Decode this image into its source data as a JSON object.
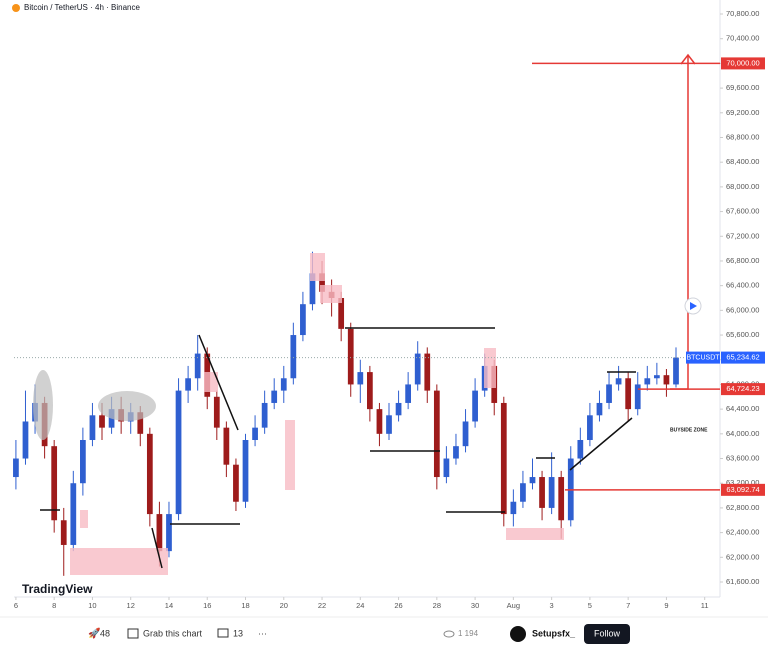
{
  "chart_data": {
    "type": "candlestick",
    "title": "Bitcoin / TetherUS · 4h · Binance",
    "x": [
      0,
      0.5,
      1,
      1.5,
      2,
      2.5,
      3,
      3.5,
      4,
      4.5,
      5,
      5.5,
      6,
      6.5,
      7,
      7.5,
      8,
      8.5,
      9,
      9.5,
      10,
      10.5,
      11,
      11.5,
      12,
      12.5,
      13,
      13.5,
      14,
      14.5,
      15,
      15.5,
      16,
      16.5,
      17,
      17.5,
      18,
      18.5,
      19,
      19.5,
      20,
      20.5,
      21,
      21.5,
      22,
      22.5,
      23,
      23.5,
      24,
      24.5,
      25,
      25.5,
      26,
      26.5,
      27,
      27.5,
      28,
      28.5,
      29,
      29.5,
      30,
      30.5,
      31,
      31.5,
      32,
      32.5,
      33,
      33.5,
      34,
      34.5
    ],
    "open": [
      63300,
      63600,
      64200,
      64500,
      63800,
      62600,
      62200,
      63200,
      63900,
      64300,
      64100,
      64400,
      64200,
      64350,
      64000,
      62700,
      62100,
      62700,
      64700,
      64900,
      65300,
      64600,
      64100,
      63500,
      62900,
      63900,
      64100,
      64500,
      64700,
      64900,
      65600,
      66100,
      66600,
      66300,
      66200,
      65700,
      64800,
      65000,
      64400,
      64000,
      64300,
      64500,
      64800,
      65300,
      64700,
      63300,
      63600,
      63800,
      64200,
      64700,
      65100,
      64500,
      62700,
      62900,
      63200,
      63300,
      62800,
      63300,
      62600,
      63600,
      63900,
      64300,
      64500,
      64800,
      64900,
      64400,
      64800,
      64900,
      64950,
      64800
    ],
    "high": [
      63900,
      64700,
      64800,
      64600,
      63900,
      62800,
      63400,
      64100,
      64500,
      64500,
      64600,
      64600,
      64500,
      64450,
      64100,
      62900,
      62900,
      64900,
      65100,
      65600,
      65400,
      64700,
      64200,
      63600,
      64000,
      64300,
      64700,
      64900,
      65100,
      65800,
      66300,
      66950,
      66800,
      66500,
      66300,
      65800,
      65200,
      65100,
      64500,
      64500,
      64700,
      65000,
      65500,
      65400,
      64800,
      63800,
      64000,
      64400,
      64900,
      65300,
      65200,
      64600,
      63100,
      63400,
      63600,
      63400,
      63700,
      63400,
      63800,
      64100,
      64500,
      64700,
      65000,
      65100,
      65000,
      65000,
      65100,
      65150,
      65050,
      65400
    ],
    "low": [
      63100,
      63500,
      64000,
      63600,
      62400,
      61700,
      62100,
      63000,
      63800,
      63900,
      64000,
      64000,
      64000,
      63800,
      62500,
      61850,
      62000,
      62600,
      64500,
      64700,
      64400,
      63900,
      63300,
      62750,
      62800,
      63800,
      64000,
      64400,
      64500,
      64800,
      65500,
      66000,
      66100,
      65900,
      65500,
      64600,
      64500,
      64200,
      63800,
      63900,
      64200,
      64400,
      64700,
      64500,
      63100,
      63200,
      63500,
      63700,
      64100,
      64600,
      64300,
      62500,
      62500,
      62800,
      63100,
      62600,
      62700,
      62300,
      62500,
      63500,
      63800,
      64200,
      64400,
      64700,
      64200,
      64300,
      64700,
      64800,
      64600,
      64750
    ],
    "close": [
      63600,
      64200,
      64500,
      63800,
      62600,
      62200,
      63200,
      63900,
      64300,
      64100,
      64400,
      64200,
      64350,
      64000,
      62700,
      62100,
      62700,
      64700,
      64900,
      65300,
      64600,
      64100,
      63500,
      62900,
      63900,
      64100,
      64500,
      64700,
      64900,
      65600,
      66100,
      66600,
      66300,
      66200,
      65700,
      64800,
      65000,
      64400,
      64000,
      64300,
      64500,
      64800,
      65300,
      64700,
      63300,
      63600,
      63800,
      64200,
      64700,
      65100,
      64500,
      62700,
      62900,
      63200,
      63300,
      62800,
      63300,
      62600,
      63600,
      63900,
      64300,
      64500,
      64800,
      64900,
      64400,
      64800,
      64900,
      64950,
      64800,
      65234.62
    ],
    "up_color": "#2f5fd0",
    "down_color": "#9e1b1b",
    "xlim": [
      -0.1,
      36.8
    ],
    "xticks": [
      {
        "value": 0,
        "label": "6"
      },
      {
        "value": 2,
        "label": "8"
      },
      {
        "value": 4,
        "label": "10"
      },
      {
        "value": 6,
        "label": "12"
      },
      {
        "value": 8,
        "label": "14"
      },
      {
        "value": 10,
        "label": "16"
      },
      {
        "value": 12,
        "label": "18"
      },
      {
        "value": 14,
        "label": "20"
      },
      {
        "value": 16,
        "label": "22"
      },
      {
        "value": 18,
        "label": "24"
      },
      {
        "value": 20,
        "label": "26"
      },
      {
        "value": 22,
        "label": "28"
      },
      {
        "value": 24,
        "label": "30"
      },
      {
        "value": 26,
        "label": "Aug"
      },
      {
        "value": 28,
        "label": "3"
      },
      {
        "value": 30,
        "label": "5"
      },
      {
        "value": 32,
        "label": "7"
      },
      {
        "value": 34,
        "label": "9"
      },
      {
        "value": 36,
        "label": "11"
      }
    ],
    "ylim": [
      61357,
      71027
    ],
    "yticks": [
      {
        "value": 61600,
        "label": "61,600.00"
      },
      {
        "value": 62000,
        "label": "62,000.00"
      },
      {
        "value": 62400,
        "label": "62,400.00"
      },
      {
        "value": 62800,
        "label": "62,800.00"
      },
      {
        "value": 63200,
        "label": "63,200.00"
      },
      {
        "value": 63600,
        "label": "63,600.00"
      },
      {
        "value": 64000,
        "label": "64,000.00"
      },
      {
        "value": 64400,
        "label": "64,400.00"
      },
      {
        "value": 64800,
        "label": "64,800.00"
      },
      {
        "value": 65200,
        "label": "65,200.00"
      },
      {
        "value": 65600,
        "label": "65,600.00"
      },
      {
        "value": 66000,
        "label": "66,000.00"
      },
      {
        "value": 66400,
        "label": "66,400.00"
      },
      {
        "value": 66800,
        "label": "66,800.00"
      },
      {
        "value": 67200,
        "label": "67,200.00"
      },
      {
        "value": 67600,
        "label": "67,600.00"
      },
      {
        "value": 68000,
        "label": "68,000.00"
      },
      {
        "value": 68400,
        "label": "68,400.00"
      },
      {
        "value": 68800,
        "label": "68,800.00"
      },
      {
        "value": 69200,
        "label": "69,200.00"
      },
      {
        "value": 69600,
        "label": "69,600.00"
      },
      {
        "value": 70000,
        "label": "70,000.00"
      },
      {
        "value": 70400,
        "label": "70,400.00"
      },
      {
        "value": 70800,
        "label": "70,800.00"
      }
    ],
    "price_lines": [
      {
        "value": 70000,
        "label": "70,000.00",
        "color": "#e53935"
      },
      {
        "value": 64724.23,
        "label": "64,724.23",
        "color": "#e53935"
      },
      {
        "value": 63092.74,
        "label": "63,092.74",
        "color": "#e53935"
      }
    ],
    "last_price": {
      "name": "BTCUSDT",
      "value": 65234.62,
      "label": "65,234.62",
      "color": "#2962ff"
    },
    "annotation": "BUYSIDE ZONE"
  },
  "brand": "TradingView",
  "footer": {
    "boosts": 48,
    "grab": "Grab this chart",
    "comments": 13,
    "more": "···",
    "views": "1 194",
    "author": "Setupsfx_",
    "follow": "Follow"
  }
}
